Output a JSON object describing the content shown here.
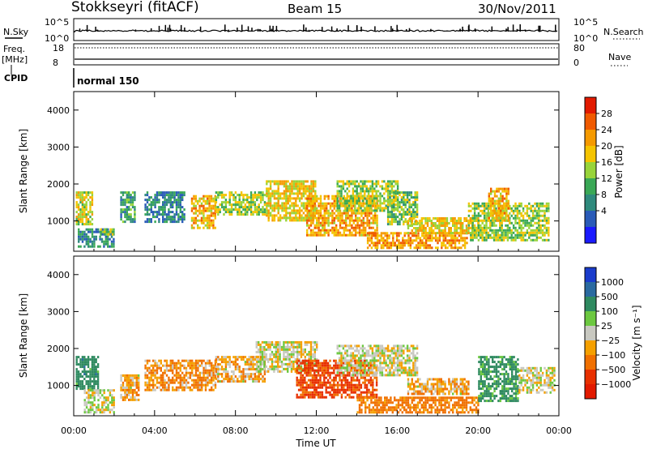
{
  "header": {
    "station": "Stokkseyri (fitACF)",
    "beam": "Beam 15",
    "date": "30/Nov/2011"
  },
  "top_panels": {
    "nsky_label": "N.Sky",
    "nsky_ticks": [
      "10^5",
      "10^0"
    ],
    "nsearch_label": "N.Search",
    "nsearch_ticks": [
      "10^5",
      "10^0"
    ],
    "freq_label": "Freq.",
    "freq_unit": "[MHz]",
    "freq_ticks": [
      "18",
      "8"
    ],
    "nave_label": "Nave",
    "nave_ticks": [
      "80",
      "0"
    ],
    "cpid_label": "CPID",
    "cpid_value": "normal 150"
  },
  "chart_data": [
    {
      "type": "heatmap",
      "name": "power",
      "ylabel": "Slant Range [km]",
      "yticks": [
        "4000",
        "3000",
        "2000",
        "1000"
      ],
      "ylim": [
        180,
        4500
      ],
      "xlim": [
        0,
        24
      ],
      "colorbar": {
        "label": "Power [dB]",
        "ticks": [
          "28",
          "24",
          "20",
          "16",
          "12",
          "8",
          "4"
        ],
        "colors": [
          "#1a1aff",
          "#2a5bb8",
          "#2f8a7d",
          "#3aa856",
          "#98d43a",
          "#f5c400",
          "#f59a00",
          "#f05a00",
          "#e21a00"
        ]
      },
      "regions": [
        {
          "t0": 0.1,
          "t1": 0.9,
          "r0": 900,
          "r1": 1800,
          "v": 20
        },
        {
          "t0": 0.2,
          "t1": 2.0,
          "r0": 300,
          "r1": 800,
          "v": 10
        },
        {
          "t0": 1.3,
          "t1": 1.9,
          "r0": 650,
          "r1": 800,
          "v": 18
        },
        {
          "t0": 2.3,
          "t1": 3.0,
          "r0": 1000,
          "r1": 1800,
          "v": 12
        },
        {
          "t0": 3.5,
          "t1": 5.5,
          "r0": 1000,
          "r1": 1800,
          "v": 10
        },
        {
          "t0": 5.8,
          "t1": 7.0,
          "r0": 800,
          "r1": 1700,
          "v": 24
        },
        {
          "t0": 7.0,
          "t1": 9.5,
          "r0": 1200,
          "r1": 1800,
          "v": 18
        },
        {
          "t0": 9.5,
          "t1": 12.0,
          "r0": 1000,
          "r1": 2100,
          "v": 22
        },
        {
          "t0": 11.5,
          "t1": 15.0,
          "r0": 600,
          "r1": 1700,
          "v": 25
        },
        {
          "t0": 13.0,
          "t1": 16.0,
          "r0": 1300,
          "r1": 2100,
          "v": 18
        },
        {
          "t0": 15.5,
          "t1": 17.0,
          "r0": 900,
          "r1": 1800,
          "v": 16
        },
        {
          "t0": 14.5,
          "t1": 19.5,
          "r0": 300,
          "r1": 700,
          "v": 26
        },
        {
          "t0": 16.5,
          "t1": 20.0,
          "r0": 700,
          "r1": 1100,
          "v": 22
        },
        {
          "t0": 19.5,
          "t1": 23.5,
          "r0": 500,
          "r1": 1500,
          "v": 18
        },
        {
          "t0": 20.5,
          "t1": 21.5,
          "r0": 1000,
          "r1": 1900,
          "v": 24
        }
      ]
    },
    {
      "type": "heatmap",
      "name": "velocity",
      "ylabel": "Slant Range [km]",
      "xlabel": "Time UT",
      "xticks": [
        "00:00",
        "04:00",
        "08:00",
        "12:00",
        "16:00",
        "20:00",
        "00:00"
      ],
      "yticks": [
        "4000",
        "3000",
        "2000",
        "1000"
      ],
      "ylim": [
        180,
        4500
      ],
      "xlim": [
        0,
        24
      ],
      "colorbar": {
        "label": "Velocity [m s⁻¹]",
        "ticks": [
          "1000",
          "500",
          "100",
          "25",
          "−25",
          "−100",
          "−500",
          "−1000"
        ],
        "colors": [
          "#1a3ccc",
          "#2a6aa0",
          "#2f8a60",
          "#6cc840",
          "#c8c8c0",
          "#f5a000",
          "#f07000",
          "#e83000",
          "#e21a00"
        ]
      },
      "regions": [
        {
          "t0": 0.1,
          "t1": 1.2,
          "r0": 900,
          "r1": 1800,
          "v": 300
        },
        {
          "t0": 0.5,
          "t1": 2.0,
          "r0": 300,
          "r1": 900,
          "v": 0
        },
        {
          "t0": 2.3,
          "t1": 3.2,
          "r0": 600,
          "r1": 1300,
          "v": -60
        },
        {
          "t0": 3.5,
          "t1": 7.0,
          "r0": 900,
          "r1": 1700,
          "v": -120
        },
        {
          "t0": 7.0,
          "t1": 9.5,
          "r0": 1100,
          "r1": 1800,
          "v": -60
        },
        {
          "t0": 9.0,
          "t1": 12.0,
          "r0": 1400,
          "r1": 2200,
          "v": 0
        },
        {
          "t0": 11.0,
          "t1": 15.0,
          "r0": 700,
          "r1": 1700,
          "v": -600
        },
        {
          "t0": 13.0,
          "t1": 17.0,
          "r0": 1300,
          "r1": 2100,
          "v": 0
        },
        {
          "t0": 14.0,
          "t1": 20.0,
          "r0": 300,
          "r1": 700,
          "v": -200
        },
        {
          "t0": 16.5,
          "t1": 19.5,
          "r0": 800,
          "r1": 1200,
          "v": -60
        },
        {
          "t0": 20.0,
          "t1": 22.0,
          "r0": 600,
          "r1": 1800,
          "v": 200
        },
        {
          "t0": 22.0,
          "t1": 23.8,
          "r0": 800,
          "r1": 1500,
          "v": 0
        }
      ]
    }
  ]
}
